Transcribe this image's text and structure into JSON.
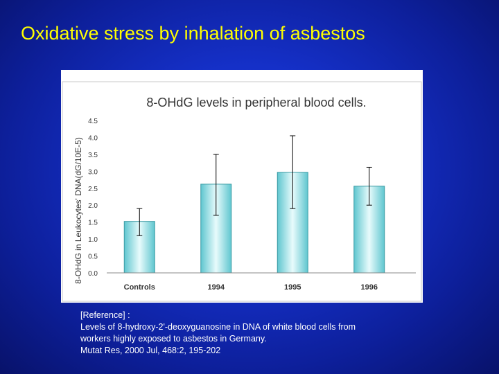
{
  "slide": {
    "title": "Oxidative stress by inhalation of asbestos"
  },
  "chart_data": {
    "type": "bar",
    "title": "8-OHdG levels in peripheral blood cells.",
    "ylabel": "8-OHdG in Leukocytes' DNA(dG/10E-5)",
    "xlabel": "",
    "categories": [
      "Controls",
      "1994",
      "1995",
      "1996"
    ],
    "series": [
      {
        "values": [
          1.52,
          2.62,
          2.97,
          2.56
        ],
        "error_low": [
          1.1,
          1.7,
          1.9,
          2.0
        ],
        "error_high": [
          1.9,
          3.5,
          4.05,
          3.12
        ]
      }
    ],
    "ylim": [
      0,
      4.5
    ],
    "yticks": [
      "0.0",
      "0.5",
      "1.0",
      "1.5",
      "2.0",
      "2.5",
      "3.0",
      "3.5",
      "4.0",
      "4.5"
    ],
    "grid": false,
    "legend": "none",
    "colors": {
      "bar_fill_edge": "#5fc6cf",
      "bar_fill_center": "#e8fbfc",
      "bar_stroke": "#3a9aa3",
      "error_bar": "#000000"
    }
  },
  "reference": {
    "lines": [
      "[Reference] :",
      "Levels of 8-hydroxy-2'-deoxyguanosine in DNA of white blood cells from",
      "workers highly exposed to asbestos in Germany.",
      "Mutat Res, 2000 Jul, 468:2, 195-202"
    ]
  }
}
